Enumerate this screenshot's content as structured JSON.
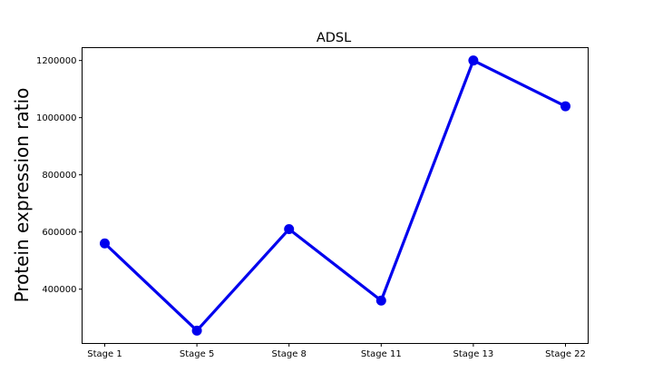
{
  "chart_data": {
    "type": "line",
    "title": "ADSL",
    "xlabel": "",
    "ylabel": "Protein expression ratio",
    "categories": [
      "Stage 1",
      "Stage 5",
      "Stage 8",
      "Stage 11",
      "Stage 13",
      "Stage 22"
    ],
    "series": [
      {
        "values": [
          560000,
          255000,
          610000,
          360000,
          1200000,
          1040000
        ],
        "color": "#0000ee"
      }
    ],
    "yticks": [
      400000,
      600000,
      800000,
      1000000,
      1200000
    ],
    "ytick_labels": [
      "400000",
      "600000",
      "800000",
      "1000000",
      "1200000"
    ],
    "ylim": [
      210000,
      1245000
    ],
    "grid": false,
    "legend": "none"
  }
}
